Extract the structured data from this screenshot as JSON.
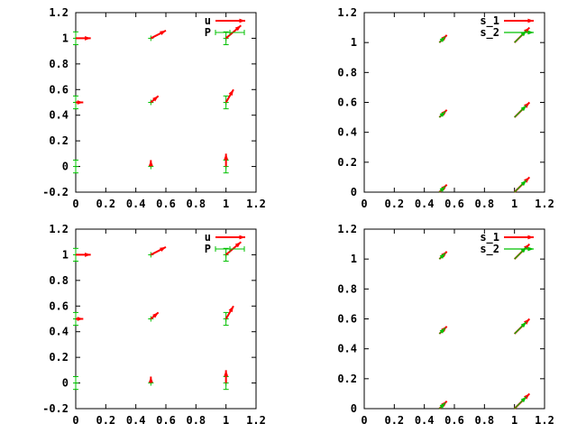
{
  "colors": {
    "red": "#ff0000",
    "green": "#00c000",
    "axis": "#000000"
  },
  "chart_data": [
    {
      "type": "vector",
      "position": "top-left",
      "xlim": [
        0,
        1.2
      ],
      "ylim": [
        -0.2,
        1.2
      ],
      "xticks": [
        "0",
        "0.2",
        "0.4",
        "0.6",
        "0.8",
        "1",
        "1.2"
      ],
      "yticks": [
        "-0.2",
        "0",
        "0.2",
        "0.4",
        "0.6",
        "0.8",
        "1",
        "1.2"
      ],
      "xtick_values": [
        0,
        0.2,
        0.4,
        0.6,
        0.8,
        1,
        1.2
      ],
      "ytick_values": [
        -0.2,
        0,
        0.2,
        0.4,
        0.6,
        0.8,
        1,
        1.2
      ],
      "legend": [
        "u",
        "P"
      ],
      "legend_position": "top-right",
      "vectors": [
        {
          "name": "u",
          "color": "red",
          "data": [
            [
              0,
              1,
              0.1,
              0
            ],
            [
              0,
              0.5,
              0.05,
              0
            ],
            [
              0.5,
              1,
              0.1,
              0.06
            ],
            [
              0.5,
              0.5,
              0.05,
              0.05
            ],
            [
              0.5,
              0,
              0,
              0.05
            ],
            [
              1,
              1,
              0.1,
              0.1
            ],
            [
              1,
              0.5,
              0.05,
              0.1
            ],
            [
              1,
              0,
              0,
              0.1
            ]
          ]
        }
      ],
      "errorbars": {
        "name": "P",
        "color": "green",
        "data": [
          [
            0,
            1,
            0.05
          ],
          [
            0,
            0.5,
            0.05
          ],
          [
            0,
            0,
            0.05
          ],
          [
            0.5,
            1,
            0
          ],
          [
            0.5,
            0.5,
            0
          ],
          [
            0.5,
            0,
            0
          ],
          [
            1,
            1,
            0.05
          ],
          [
            1,
            0.5,
            0.05
          ],
          [
            1,
            0,
            0.05
          ]
        ]
      }
    },
    {
      "type": "vector",
      "position": "top-right",
      "xlim": [
        0,
        1.2
      ],
      "ylim": [
        0,
        1.2
      ],
      "xticks": [
        "0",
        "0.2",
        "0.4",
        "0.6",
        "0.8",
        "1",
        "1.2"
      ],
      "yticks": [
        "0",
        "0.2",
        "0.4",
        "0.6",
        "0.8",
        "1",
        "1.2"
      ],
      "xtick_values": [
        0,
        0.2,
        0.4,
        0.6,
        0.8,
        1,
        1.2
      ],
      "ytick_values": [
        0,
        0.2,
        0.4,
        0.6,
        0.8,
        1,
        1.2
      ],
      "legend": [
        "s_1",
        "s_2"
      ],
      "legend_position": "top-right",
      "vectors": [
        {
          "name": "s_1",
          "color": "red",
          "data": [
            [
              0.5,
              1,
              0.05,
              0.05
            ],
            [
              0.5,
              0.5,
              0.05,
              0.05
            ],
            [
              0.5,
              0,
              0.05,
              0.05
            ],
            [
              1,
              1,
              0.1,
              0.1
            ],
            [
              1,
              0.5,
              0.1,
              0.1
            ],
            [
              1,
              0,
              0.1,
              0.1
            ]
          ]
        },
        {
          "name": "s_2",
          "color": "green",
          "data": [
            [
              0.5,
              1,
              0.04,
              0.04
            ],
            [
              0.5,
              0.5,
              0.04,
              0.04
            ],
            [
              0.5,
              0,
              0.04,
              0.04
            ],
            [
              1,
              1,
              0.08,
              0.08
            ],
            [
              1,
              0.5,
              0.08,
              0.08
            ],
            [
              1,
              0,
              0.08,
              0.08
            ]
          ]
        }
      ]
    },
    {
      "type": "vector",
      "position": "bottom-left",
      "xlim": [
        0,
        1.2
      ],
      "ylim": [
        -0.2,
        1.2
      ],
      "xticks": [
        "0",
        "0.2",
        "0.4",
        "0.6",
        "0.8",
        "1",
        "1.2"
      ],
      "yticks": [
        "-0.2",
        "0",
        "0.2",
        "0.4",
        "0.6",
        "0.8",
        "1",
        "1.2"
      ],
      "xtick_values": [
        0,
        0.2,
        0.4,
        0.6,
        0.8,
        1,
        1.2
      ],
      "ytick_values": [
        -0.2,
        0,
        0.2,
        0.4,
        0.6,
        0.8,
        1,
        1.2
      ],
      "legend": [
        "u",
        "P"
      ],
      "legend_position": "top-right",
      "vectors": [
        {
          "name": "u",
          "color": "red",
          "data": [
            [
              0,
              1,
              0.1,
              0
            ],
            [
              0,
              0.5,
              0.05,
              0
            ],
            [
              0.5,
              1,
              0.1,
              0.06
            ],
            [
              0.5,
              0.5,
              0.05,
              0.05
            ],
            [
              0.5,
              0,
              0,
              0.05
            ],
            [
              1,
              1,
              0.1,
              0.1
            ],
            [
              1,
              0.5,
              0.05,
              0.1
            ],
            [
              1,
              0,
              0,
              0.1
            ]
          ]
        }
      ],
      "errorbars": {
        "name": "P",
        "color": "green",
        "data": [
          [
            0,
            1,
            0.05
          ],
          [
            0,
            0.5,
            0.05
          ],
          [
            0,
            0,
            0.05
          ],
          [
            0.5,
            1,
            0
          ],
          [
            0.5,
            0.5,
            0
          ],
          [
            0.5,
            0,
            0
          ],
          [
            1,
            1,
            0.05
          ],
          [
            1,
            0.5,
            0.05
          ],
          [
            1,
            0,
            0.05
          ]
        ]
      }
    },
    {
      "type": "vector",
      "position": "bottom-right",
      "xlim": [
        0,
        1.2
      ],
      "ylim": [
        0,
        1.2
      ],
      "xticks": [
        "0",
        "0.2",
        "0.4",
        "0.6",
        "0.8",
        "1",
        "1.2"
      ],
      "yticks": [
        "0",
        "0.2",
        "0.4",
        "0.6",
        "0.8",
        "1",
        "1.2"
      ],
      "xtick_values": [
        0,
        0.2,
        0.4,
        0.6,
        0.8,
        1,
        1.2
      ],
      "ytick_values": [
        0,
        0.2,
        0.4,
        0.6,
        0.8,
        1,
        1.2
      ],
      "legend": [
        "s_1",
        "s_2"
      ],
      "legend_position": "top-right",
      "vectors": [
        {
          "name": "s_1",
          "color": "red",
          "data": [
            [
              0.5,
              1,
              0.05,
              0.05
            ],
            [
              0.5,
              0.5,
              0.05,
              0.05
            ],
            [
              0.5,
              0,
              0.05,
              0.05
            ],
            [
              1,
              1,
              0.1,
              0.1
            ],
            [
              1,
              0.5,
              0.1,
              0.1
            ],
            [
              1,
              0,
              0.1,
              0.1
            ]
          ]
        },
        {
          "name": "s_2",
          "color": "green",
          "data": [
            [
              0.5,
              1,
              0.04,
              0.04
            ],
            [
              0.5,
              0.5,
              0.04,
              0.04
            ],
            [
              0.5,
              0,
              0.04,
              0.04
            ],
            [
              1,
              1,
              0.08,
              0.08
            ],
            [
              1,
              0.5,
              0.08,
              0.08
            ],
            [
              1,
              0,
              0.08,
              0.08
            ]
          ]
        }
      ]
    }
  ]
}
